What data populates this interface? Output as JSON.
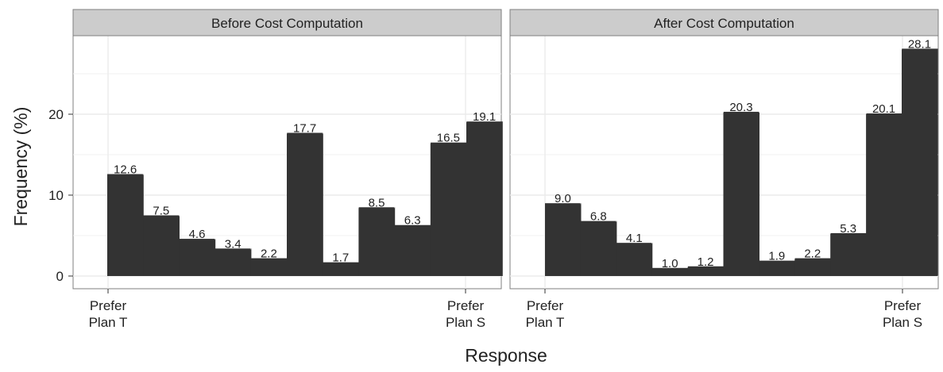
{
  "chart_data": {
    "type": "bar",
    "xlabel": "Response",
    "ylabel": "Frequency (%)",
    "ylim": [
      0,
      29
    ],
    "yticks": [
      0,
      10,
      20
    ],
    "grid": true,
    "x_tick_labels": [
      {
        "line1": "Prefer",
        "line2": "Plan T"
      },
      {
        "line1": "Prefer",
        "line2": "Plan S"
      }
    ],
    "panels": [
      {
        "title": "Before Cost Computation",
        "values": [
          12.6,
          7.5,
          4.6,
          3.4,
          2.2,
          17.7,
          1.7,
          8.5,
          6.3,
          16.5,
          19.1
        ],
        "labels": [
          "12.6",
          "7.5",
          "4.6",
          "3.4",
          "2.2",
          "17.7",
          "1.7",
          "8.5",
          "6.3",
          "16.5",
          "19.1"
        ]
      },
      {
        "title": "After Cost Computation",
        "values": [
          9.0,
          6.8,
          4.1,
          1.0,
          1.2,
          20.3,
          1.9,
          2.2,
          5.3,
          20.1,
          28.1
        ],
        "labels": [
          "9.0",
          "6.8",
          "4.1",
          "1.0",
          "1.2",
          "20.3",
          "1.9",
          "2.2",
          "5.3",
          "20.1",
          "28.1"
        ]
      }
    ],
    "colors": {
      "bar": "#333333",
      "strip": "#cccccc",
      "grid": "#ebebeb"
    }
  }
}
